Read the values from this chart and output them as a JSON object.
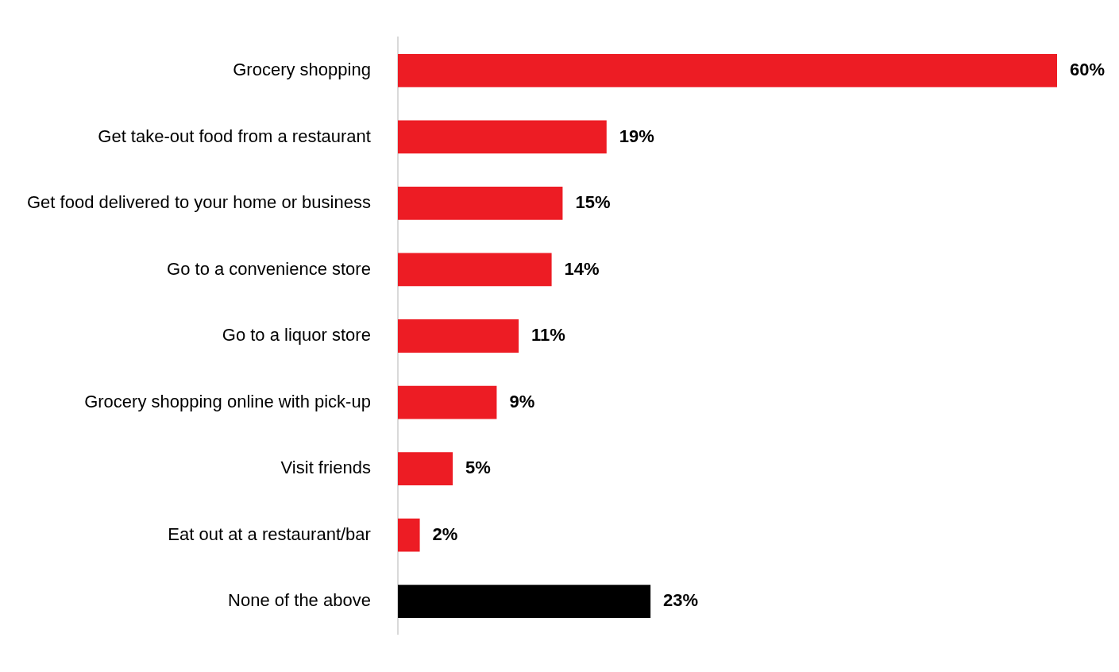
{
  "chart_data": {
    "type": "bar",
    "orientation": "horizontal",
    "categories": [
      "Grocery shopping",
      "Get take-out food from a restaurant",
      "Get food delivered to your home or business",
      "Go to a convenience store",
      "Go to a liquor store",
      "Grocery shopping online with pick-up",
      "Visit friends",
      "Eat out at a restaurant/bar",
      "None of the above"
    ],
    "values": [
      60,
      19,
      15,
      14,
      11,
      9,
      5,
      2,
      23
    ],
    "colors": [
      "#ed1c24",
      "#ed1c24",
      "#ed1c24",
      "#ed1c24",
      "#ed1c24",
      "#ed1c24",
      "#ed1c24",
      "#ed1c24",
      "#000000"
    ],
    "value_labels": [
      "60%",
      "19%",
      "15%",
      "14%",
      "11%",
      "9%",
      "5%",
      "2%",
      "23%"
    ],
    "legend": false
  }
}
